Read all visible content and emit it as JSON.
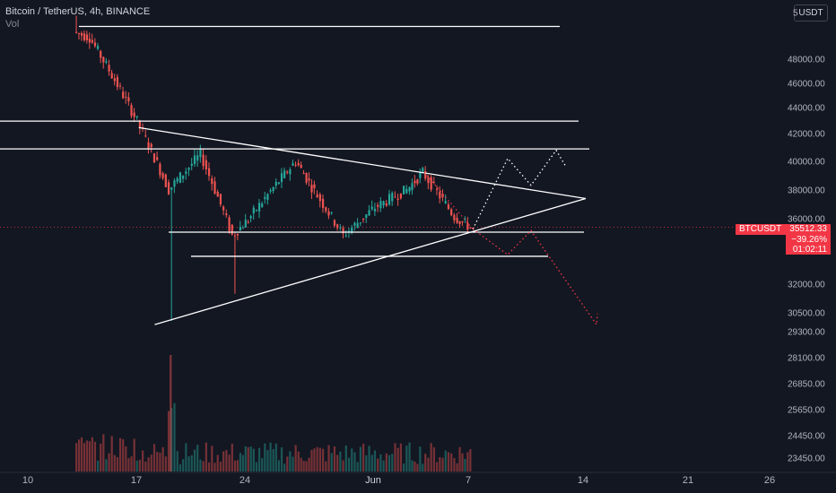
{
  "header": {
    "title": "Bitcoin / TetherUS, 4h, BINANCE",
    "indicator": "Vol",
    "currency_button": "USDT"
  },
  "price_axis": {
    "ticks": [
      "48000.00",
      "46000.00",
      "44000.00",
      "42000.00",
      "40000.00",
      "38000.00",
      "36000.00",
      "32000.00",
      "30500.00",
      "29300.00",
      "28100.00",
      "26850.00",
      "25650.00",
      "24450.00",
      "23450.00"
    ],
    "top_partial": "5"
  },
  "time_axis": {
    "ticks": [
      "10",
      "17",
      "24",
      "Jun",
      "7",
      "14",
      "21",
      "26"
    ]
  },
  "price_label": {
    "symbol": "BTCUSDT",
    "value": "35512.33",
    "change": "−39.26%",
    "countdown": "01:02:11",
    "color": "#f23645"
  },
  "colors": {
    "background": "#131722",
    "up": "#26a69a",
    "down": "#ef5350",
    "drawing": "#ffffff"
  },
  "chart_data": {
    "type": "candlestick",
    "symbol": "BTCUSDT",
    "timeframe": "4h",
    "exchange": "BINANCE",
    "last_price": 35512.33,
    "price_scale": "logarithmic",
    "y_range": [
      23000,
      52000
    ],
    "drawn_horizontal_levels": [
      51000,
      43000,
      40900,
      35200,
      33700
    ],
    "triangle_top_line": [
      [
        {
          "date": "May 17",
          "price": 42500
        },
        {
          "date": "Jun 14",
          "price": 37400
        }
      ]
    ],
    "triangle_bottom_line": [
      [
        {
          "date": "May 18",
          "price": 29800
        },
        {
          "date": "Jun 14",
          "price": 37400
        }
      ]
    ],
    "projection_up": [
      35400,
      40200,
      38300,
      40800
    ],
    "projection_down": [
      35400,
      33800,
      35300,
      29800
    ],
    "price_segments": [
      {
        "from": "May 13",
        "to": "May 14",
        "from_price": 50500,
        "to_price": 50000
      },
      {
        "from": "May 14",
        "to": "May 17",
        "from_price": 50000,
        "to_price": 43000
      },
      {
        "from": "May 17",
        "to": "May 19",
        "from_price": 43000,
        "to_price": 38000
      },
      {
        "from": "May 19",
        "to": "May 21",
        "from_price": 38000,
        "to_price": 40500
      },
      {
        "from": "May 21",
        "to": "May 23",
        "from_price": 40500,
        "to_price": 35000
      },
      {
        "from": "May 23",
        "to": "May 24",
        "from_price": 35000,
        "to_price": 36000
      },
      {
        "from": "May 24",
        "to": "May 27",
        "from_price": 36000,
        "to_price": 40000
      },
      {
        "from": "May 27",
        "to": "May 28",
        "from_price": 40000,
        "to_price": 38200
      },
      {
        "from": "May 28",
        "to": "May 30",
        "from_price": 38200,
        "to_price": 35000
      },
      {
        "from": "May 30",
        "to": "Jun 1",
        "from_price": 35000,
        "to_price": 36800
      },
      {
        "from": "Jun 1",
        "to": "Jun 3",
        "from_price": 36800,
        "to_price": 38000
      },
      {
        "from": "Jun 3",
        "to": "Jun 4",
        "from_price": 38000,
        "to_price": 39200
      },
      {
        "from": "Jun 4",
        "to": "Jun 6",
        "from_price": 39200,
        "to_price": 36200
      },
      {
        "from": "Jun 6",
        "to": "Jun 7",
        "from_price": 36200,
        "to_price": 35500
      }
    ],
    "volume_note": "volume bars at bottom, largest spike around May 19"
  }
}
